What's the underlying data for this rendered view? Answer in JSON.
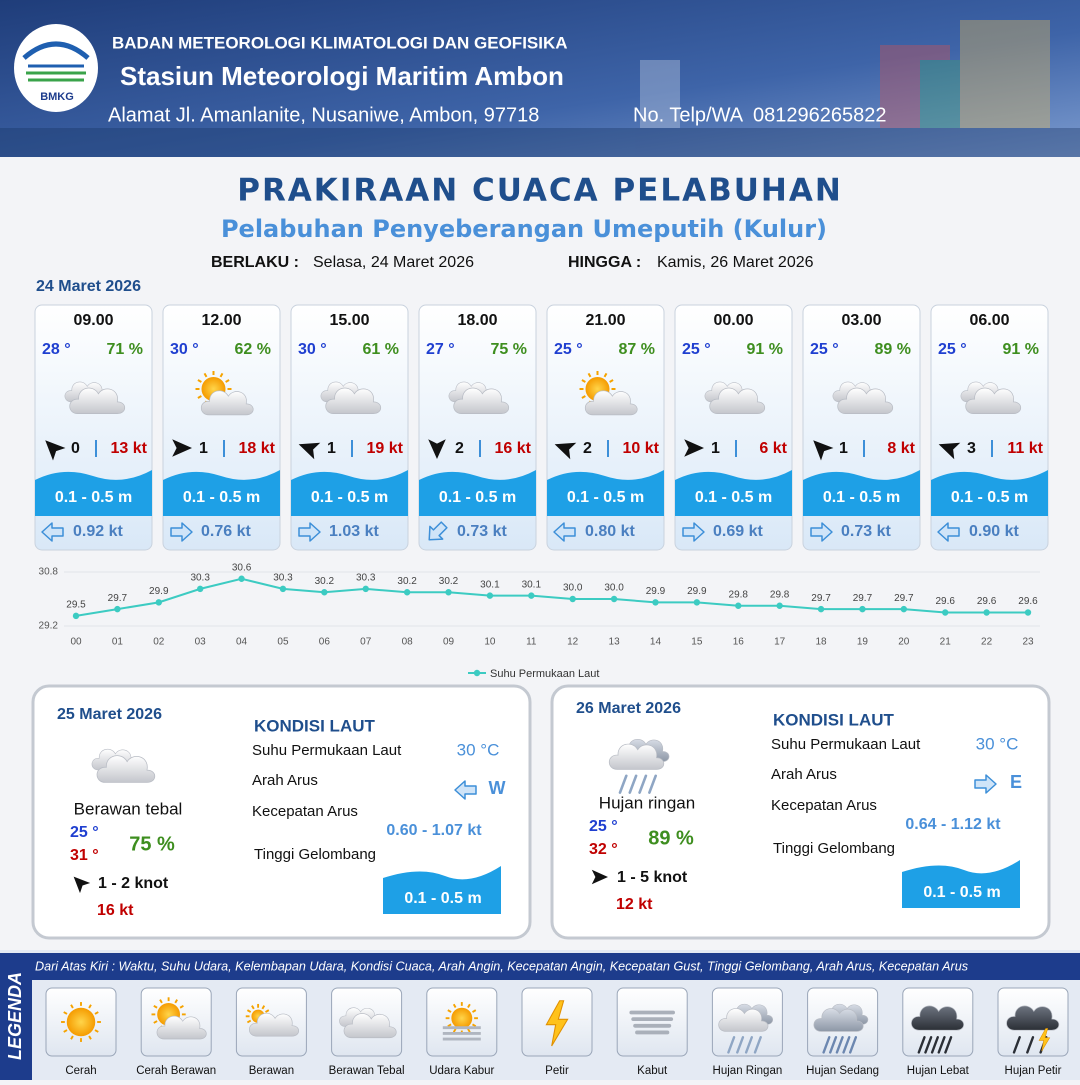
{
  "header": {
    "logo": "BMKG",
    "agency": "BADAN METEOROLOGI KLIMATOLOGI DAN GEOFISIKA",
    "station": "Stasiun Meteorologi Maritim Ambon",
    "address": "Alamat Jl. Amanlanite, Nusaniwe, Ambon, 97718",
    "phone": "No. Telp/WA  081296265822"
  },
  "title": "PRAKIRAAN CUACA PELABUHAN",
  "subtitle": "Pelabuhan Penyeberangan Umeputih (Kulur)",
  "validity": {
    "from_label": "BERLAKU :",
    "from": "Selasa, 24 Maret 2026",
    "to_label": "HINGGA :",
    "to": "Kamis, 26 Maret 2026"
  },
  "today": {
    "date": "24 Maret 2026",
    "slots": [
      {
        "time": "09.00",
        "temp": "28 °",
        "humidity": "71 %",
        "icon": 3,
        "wind_arrow_deg": 225,
        "wind": "0",
        "gust": "13 kt",
        "wave": "0.1 - 0.5 m",
        "current_arrow_deg": 180,
        "current": "0.92 kt"
      },
      {
        "time": "12.00",
        "temp": "30 °",
        "humidity": "62 %",
        "icon": 1,
        "wind_arrow_deg": 0,
        "wind": "1",
        "gust": "18 kt",
        "wave": "0.1 - 0.5 m",
        "current_arrow_deg": 0,
        "current": "0.76 kt"
      },
      {
        "time": "15.00",
        "temp": "30 °",
        "humidity": "61 %",
        "icon": 3,
        "wind_arrow_deg": 200,
        "wind": "1",
        "gust": "19 kt",
        "wave": "0.1 - 0.5 m",
        "current_arrow_deg": 0,
        "current": "1.03 kt"
      },
      {
        "time": "18.00",
        "temp": "27 °",
        "humidity": "75 %",
        "icon": 3,
        "wind_arrow_deg": 90,
        "wind": "2",
        "gust": "16 kt",
        "wave": "0.1 - 0.5 m",
        "current_arrow_deg": 135,
        "current": "0.73 kt"
      },
      {
        "time": "21.00",
        "temp": "25 °",
        "humidity": "87 %",
        "icon": 1,
        "wind_arrow_deg": 200,
        "wind": "2",
        "gust": "10 kt",
        "wave": "0.1 - 0.5 m",
        "current_arrow_deg": 180,
        "current": "0.80 kt"
      },
      {
        "time": "00.00",
        "temp": "25 °",
        "humidity": "91 %",
        "icon": 3,
        "wind_arrow_deg": 0,
        "wind": "1",
        "gust": "6 kt",
        "wave": "0.1 - 0.5 m",
        "current_arrow_deg": 0,
        "current": "0.69 kt"
      },
      {
        "time": "03.00",
        "temp": "25 °",
        "humidity": "89 %",
        "icon": 3,
        "wind_arrow_deg": 225,
        "wind": "1",
        "gust": "8 kt",
        "wave": "0.1 - 0.5 m",
        "current_arrow_deg": 0,
        "current": "0.73 kt"
      },
      {
        "time": "06.00",
        "temp": "25 °",
        "humidity": "91 %",
        "icon": 3,
        "wind_arrow_deg": 200,
        "wind": "3",
        "gust": "11 kt",
        "wave": "0.1 - 0.5 m",
        "current_arrow_deg": 180,
        "current": "0.90 kt"
      }
    ]
  },
  "chart_data": {
    "type": "line",
    "x": [
      "00",
      "01",
      "02",
      "03",
      "04",
      "05",
      "06",
      "07",
      "08",
      "09",
      "10",
      "11",
      "12",
      "13",
      "14",
      "15",
      "16",
      "17",
      "18",
      "19",
      "20",
      "21",
      "22",
      "23"
    ],
    "series": [
      {
        "name": "Suhu Permukaan Laut",
        "color": "#3ccbc2",
        "values": [
          29.5,
          29.7,
          29.9,
          30.3,
          30.6,
          30.3,
          30.2,
          30.3,
          30.2,
          30.2,
          30.1,
          30.1,
          30.0,
          30.0,
          29.9,
          29.9,
          29.8,
          29.8,
          29.7,
          29.7,
          29.7,
          29.6,
          29.6,
          29.6
        ],
        "value_labels": [
          "29.5",
          "29.7",
          "29.9",
          "30.3",
          "30.6",
          "30.3",
          "30.2",
          "30.3",
          "30.2",
          "30.2",
          "30.1",
          "30.1",
          "30.0",
          "30.0",
          "29.9",
          "29.9",
          "29.8",
          "29.8",
          "29.7",
          "29.7",
          "29.7",
          "29.6",
          "29.6",
          "29.6"
        ]
      }
    ],
    "ylim": [
      29.2,
      30.8
    ],
    "yticks": [
      30.8,
      29.2
    ],
    "legend": "bottom"
  },
  "outlook": [
    {
      "date": "25 Maret 2026",
      "icon": 3,
      "condition": "Berawan tebal",
      "temp_min": "25 °",
      "temp_max": "31 °",
      "humidity": "75 %",
      "wind_arrow_deg": 225,
      "wind": "1 - 2 knot",
      "gust": "16 kt",
      "sea_title": "KONDISI LAUT",
      "sst_label": "Suhu Permukaan Laut",
      "sst": "30 °C",
      "current_dir_label": "Arah Arus",
      "current_arrow_deg": 180,
      "current_dir": "W",
      "current_speed_label": "Kecepatan Arus",
      "current_speed": "0.60 - 1.07 kt",
      "wave_label": "Tinggi Gelombang",
      "wave": "0.1 - 0.5 m"
    },
    {
      "date": "26 Maret 2026",
      "icon": 7,
      "condition": "Hujan ringan",
      "temp_min": "25 °",
      "temp_max": "32 °",
      "humidity": "89 %",
      "wind_arrow_deg": 0,
      "wind": "1 - 5 knot",
      "gust": "12 kt",
      "sea_title": "KONDISI LAUT",
      "sst_label": "Suhu Permukaan Laut",
      "sst": "30 °C",
      "current_dir_label": "Arah Arus",
      "current_arrow_deg": 0,
      "current_dir": "E",
      "current_speed_label": "Kecepatan Arus",
      "current_speed": "0.64 - 1.12 kt",
      "wave_label": "Tinggi Gelombang",
      "wave": "0.1 - 0.5 m"
    }
  ],
  "legend": {
    "title": "LEGENDA",
    "description": "Dari Atas Kiri : Waktu, Suhu Udara, Kelembapan Udara, Kondisi Cuaca, Arah Angin, Kecepatan Angin, Kecepatan Gust, Tinggi Gelombang, Arah Arus, Kecepatan Arus",
    "items": [
      "Cerah",
      "Cerah Berawan",
      "Berawan",
      "Berawan Tebal",
      "Udara Kabur",
      "Petir",
      "Kabut",
      "Hujan Ringan",
      "Hujan Sedang",
      "Hujan Lebat",
      "Hujan Petir"
    ]
  }
}
